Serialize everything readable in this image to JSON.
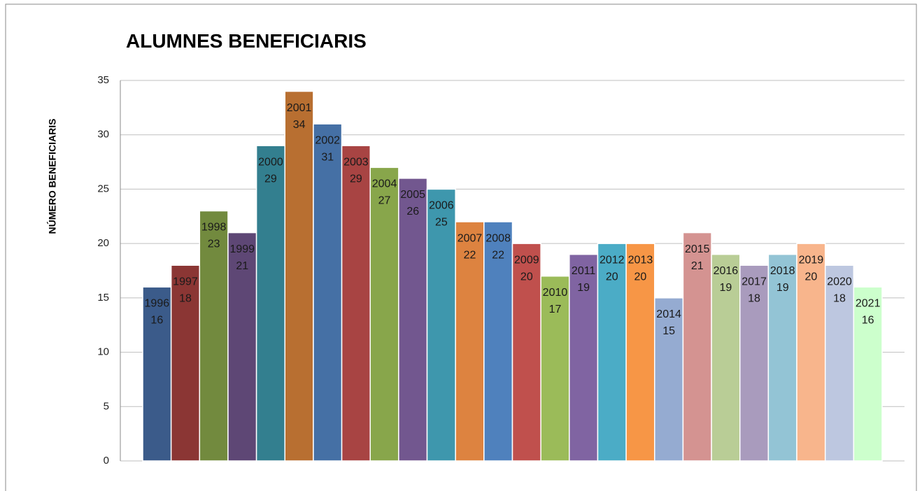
{
  "chart_data": {
    "type": "bar",
    "title": "ALUMNES BENEFICIARIS",
    "y_label": "NÚMERO BENEFICIARIS",
    "categories": [
      "1996",
      "1997",
      "1998",
      "1999",
      "2000",
      "2001",
      "2002",
      "2003",
      "2004",
      "2005",
      "2006",
      "2007",
      "2008",
      "2009",
      "2010",
      "2011",
      "2012",
      "2013",
      "2014",
      "2015",
      "2016",
      "2017",
      "2018",
      "2019",
      "2020",
      "2021"
    ],
    "values": [
      16,
      18,
      23,
      21,
      29,
      34,
      31,
      29,
      27,
      26,
      25,
      22,
      22,
      20,
      17,
      19,
      20,
      20,
      15,
      21,
      19,
      18,
      19,
      20,
      18,
      16
    ],
    "colors": [
      "#3b5b8a",
      "#8b3634",
      "#728a3e",
      "#5e4775",
      "#337f8f",
      "#b86f31",
      "#4570a5",
      "#a84443",
      "#88a64b",
      "#72578f",
      "#3e97ad",
      "#dd8340",
      "#4f81bd",
      "#c0504d",
      "#9bbb59",
      "#8064a2",
      "#4bacc6",
      "#f79646",
      "#95abd1",
      "#d49391",
      "#b9cd96",
      "#a99bbd",
      "#93c4d5",
      "#f8b58c",
      "#bdc7e0",
      "#ccffcc"
    ],
    "ylim": [
      0,
      35
    ],
    "yticks": [
      0,
      5,
      10,
      15,
      20,
      25,
      30,
      35
    ],
    "grid": true
  }
}
